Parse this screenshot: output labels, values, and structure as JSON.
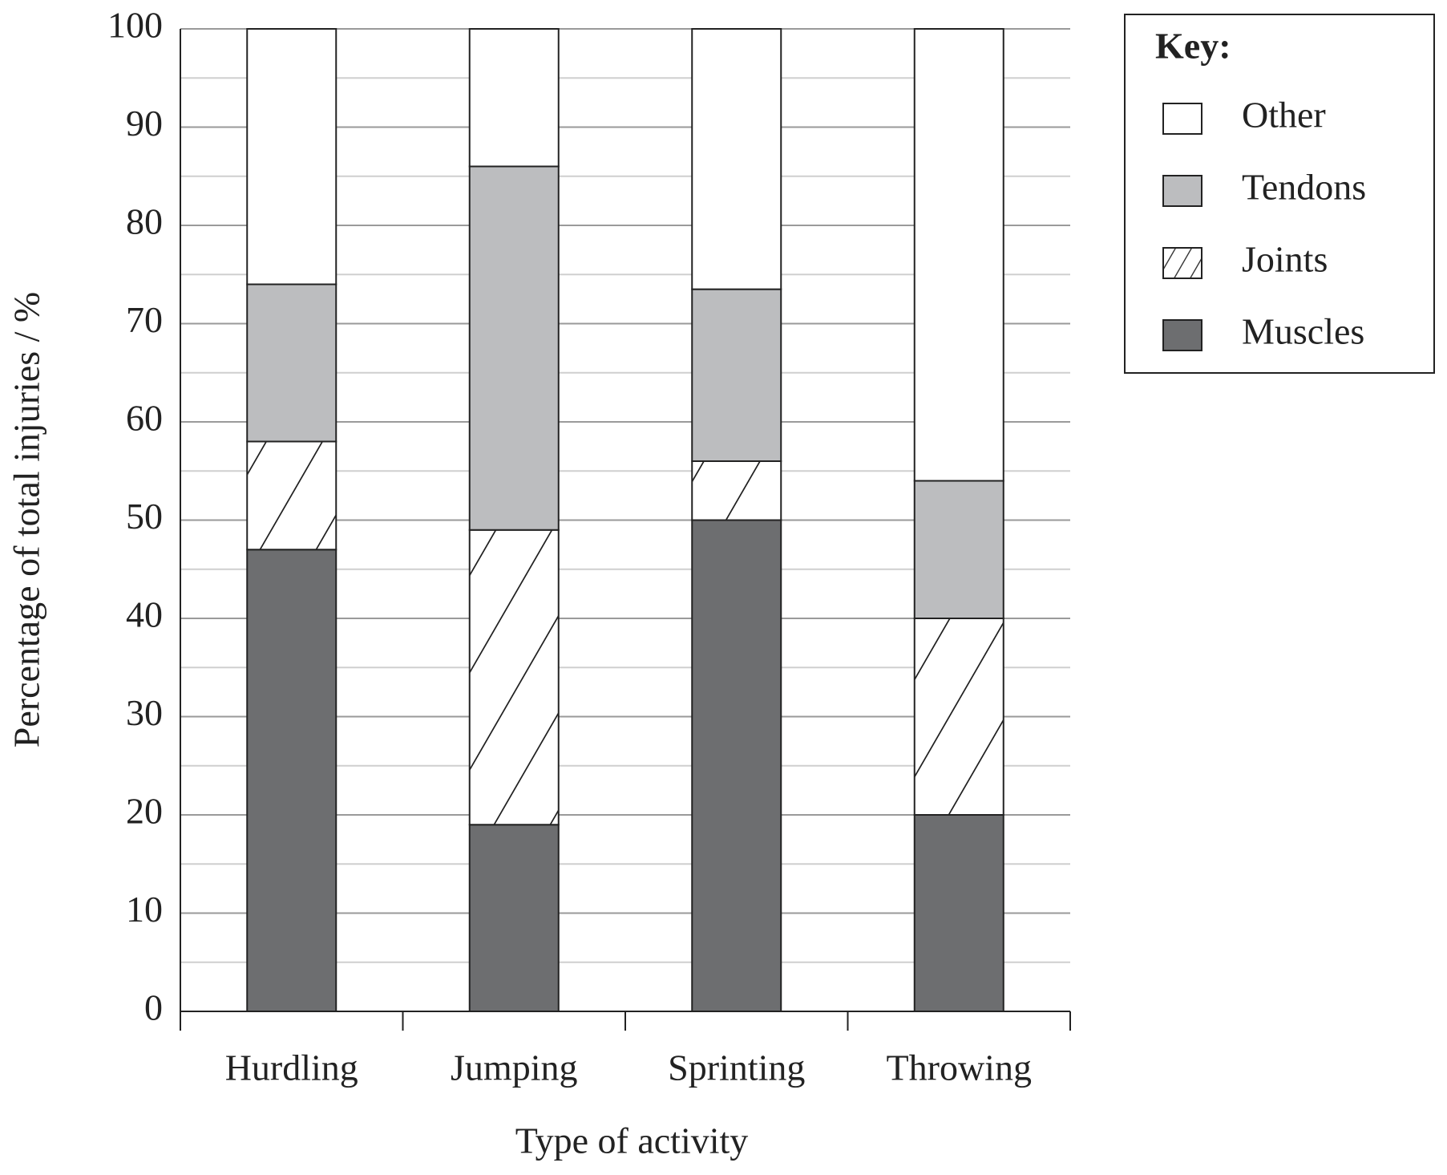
{
  "chart_data": {
    "type": "stacked_bar",
    "x_label": "Type of activity",
    "y_label": "Percentage of total injuries / %",
    "categories": [
      "Hurdling",
      "Jumping",
      "Sprinting",
      "Throwing"
    ],
    "series": [
      {
        "name": "Muscles",
        "color": "#6d6e70",
        "values": [
          47,
          19,
          50,
          20
        ]
      },
      {
        "name": "Joints",
        "color": "#ffffff",
        "pattern": "hatch",
        "values": [
          11,
          30,
          6,
          20
        ]
      },
      {
        "name": "Tendons",
        "color": "#bcbdbf",
        "values": [
          16,
          37,
          17.5,
          14
        ]
      },
      {
        "name": "Other",
        "color": "#ffffff",
        "values": [
          26,
          14,
          26.5,
          46
        ]
      }
    ],
    "ylim": [
      0,
      100
    ],
    "yticks": [
      0,
      10,
      20,
      30,
      40,
      50,
      60,
      70,
      80,
      90,
      100
    ],
    "minor_yticks": [
      5,
      15,
      25,
      35,
      45,
      55,
      65,
      75,
      85,
      95
    ],
    "grid": true,
    "legend_title": "Key:",
    "legend_position": "right"
  }
}
